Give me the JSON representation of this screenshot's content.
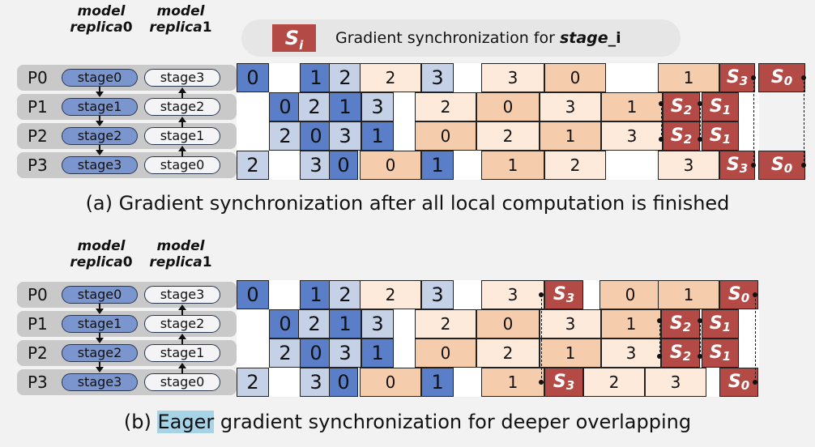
{
  "legend": {
    "box": "Si",
    "text": "Gradient synchronization for ",
    "emph": "stage_i"
  },
  "headers": {
    "model": "model",
    "replica": "replica",
    "r0": "0",
    "r1": "1"
  },
  "processes": [
    {
      "label": "P0",
      "left": "stage0",
      "right": "stage3"
    },
    {
      "label": "P1",
      "left": "stage1",
      "right": "stage2"
    },
    {
      "label": "P2",
      "left": "stage2",
      "right": "stage1"
    },
    {
      "label": "P3",
      "left": "stage3",
      "right": "stage0"
    }
  ],
  "captions": {
    "a": "(a) Gradient synchronization after all local computation is finished",
    "b_prefix": "(b) ",
    "b_highlight": "Eager",
    "b_suffix": " gradient synchronization for deeper overlapping"
  },
  "colors": {
    "forward_replica0": "#5b7ec8",
    "forward_replica1": "#c5d1e6",
    "backward_replica0": "#f5ccac",
    "backward_replica1": "#fdeadb",
    "sync": "#b34a45",
    "highlight": "#a6d3e6"
  },
  "schedule_a": [
    [
      [
        "0",
        "B",
        0,
        40
      ],
      [
        "1",
        "B",
        78,
        40
      ],
      [
        "2",
        "L",
        114,
        40
      ],
      [
        "2",
        "Y",
        152,
        76
      ],
      [
        "3",
        "L",
        228,
        40
      ],
      [
        "3",
        "Y",
        302,
        78
      ],
      [
        "0",
        "O",
        380,
        76
      ],
      [
        "1",
        "O",
        520,
        76
      ],
      [
        "S3",
        "R",
        596,
        44
      ],
      [
        "S0",
        "R",
        644,
        58
      ]
    ],
    [
      [
        "0",
        "B",
        40,
        40
      ],
      [
        "2",
        "L",
        76,
        40
      ],
      [
        "1",
        "B",
        114,
        40
      ],
      [
        "3",
        "L",
        154,
        40
      ],
      [
        "2",
        "Y",
        220,
        76
      ],
      [
        "0",
        "O",
        296,
        78
      ],
      [
        "3",
        "Y",
        374,
        76
      ],
      [
        "1",
        "O",
        450,
        76
      ],
      [
        "S2",
        "R",
        526,
        46
      ],
      [
        "S1",
        "R",
        574,
        46
      ]
    ],
    [
      [
        "2",
        "L",
        40,
        40
      ],
      [
        "0",
        "B",
        78,
        40
      ],
      [
        "3",
        "L",
        114,
        40
      ],
      [
        "1",
        "B",
        154,
        40
      ],
      [
        "0",
        "O",
        220,
        76
      ],
      [
        "2",
        "Y",
        296,
        78
      ],
      [
        "1",
        "O",
        374,
        76
      ],
      [
        "3",
        "Y",
        450,
        76
      ],
      [
        "S2",
        "R",
        526,
        46
      ],
      [
        "S1",
        "R",
        574,
        46
      ]
    ],
    [
      [
        "2",
        "L",
        0,
        40
      ],
      [
        "3",
        "L",
        78,
        40
      ],
      [
        "0",
        "B",
        114,
        36
      ],
      [
        "0",
        "O",
        152,
        76
      ],
      [
        "1",
        "B",
        228,
        40
      ],
      [
        "1",
        "O",
        302,
        78
      ],
      [
        "2",
        "Y",
        380,
        76
      ],
      [
        "3",
        "Y",
        520,
        76
      ],
      [
        "S3",
        "R",
        596,
        44
      ],
      [
        "S0",
        "R",
        644,
        58
      ]
    ]
  ],
  "schedule_b": [
    [
      [
        "0",
        "B",
        0,
        40
      ],
      [
        "1",
        "B",
        78,
        40
      ],
      [
        "2",
        "L",
        114,
        40
      ],
      [
        "2",
        "Y",
        152,
        76
      ],
      [
        "3",
        "L",
        228,
        40
      ],
      [
        "3",
        "Y",
        302,
        78
      ],
      [
        "S3",
        "R",
        380,
        48
      ],
      [
        "0",
        "O",
        448,
        76
      ],
      [
        "1",
        "O",
        520,
        76
      ],
      [
        "S0",
        "R",
        596,
        48
      ]
    ],
    [
      [
        "0",
        "B",
        40,
        40
      ],
      [
        "2",
        "L",
        76,
        40
      ],
      [
        "1",
        "B",
        114,
        40
      ],
      [
        "3",
        "L",
        154,
        40
      ],
      [
        "2",
        "Y",
        220,
        76
      ],
      [
        "0",
        "O",
        296,
        78
      ],
      [
        "3",
        "Y",
        374,
        76
      ],
      [
        "1",
        "O",
        450,
        74
      ],
      [
        "S2",
        "R",
        524,
        48
      ],
      [
        "S1",
        "R",
        574,
        46
      ]
    ],
    [
      [
        "2",
        "L",
        40,
        40
      ],
      [
        "0",
        "B",
        78,
        40
      ],
      [
        "3",
        "L",
        114,
        40
      ],
      [
        "1",
        "B",
        154,
        40
      ],
      [
        "0",
        "O",
        220,
        76
      ],
      [
        "2",
        "Y",
        296,
        78
      ],
      [
        "1",
        "O",
        374,
        76
      ],
      [
        "3",
        "Y",
        450,
        74
      ],
      [
        "S2",
        "R",
        524,
        48
      ],
      [
        "S1",
        "R",
        574,
        46
      ]
    ],
    [
      [
        "2",
        "L",
        0,
        40
      ],
      [
        "3",
        "L",
        78,
        40
      ],
      [
        "0",
        "B",
        114,
        36
      ],
      [
        "0",
        "O",
        152,
        76
      ],
      [
        "1",
        "B",
        228,
        40
      ],
      [
        "1",
        "O",
        302,
        78
      ],
      [
        "S3",
        "R",
        380,
        48
      ],
      [
        "2",
        "Y",
        428,
        76
      ],
      [
        "3",
        "Y",
        504,
        76
      ],
      [
        "S0",
        "R",
        596,
        48
      ]
    ]
  ]
}
